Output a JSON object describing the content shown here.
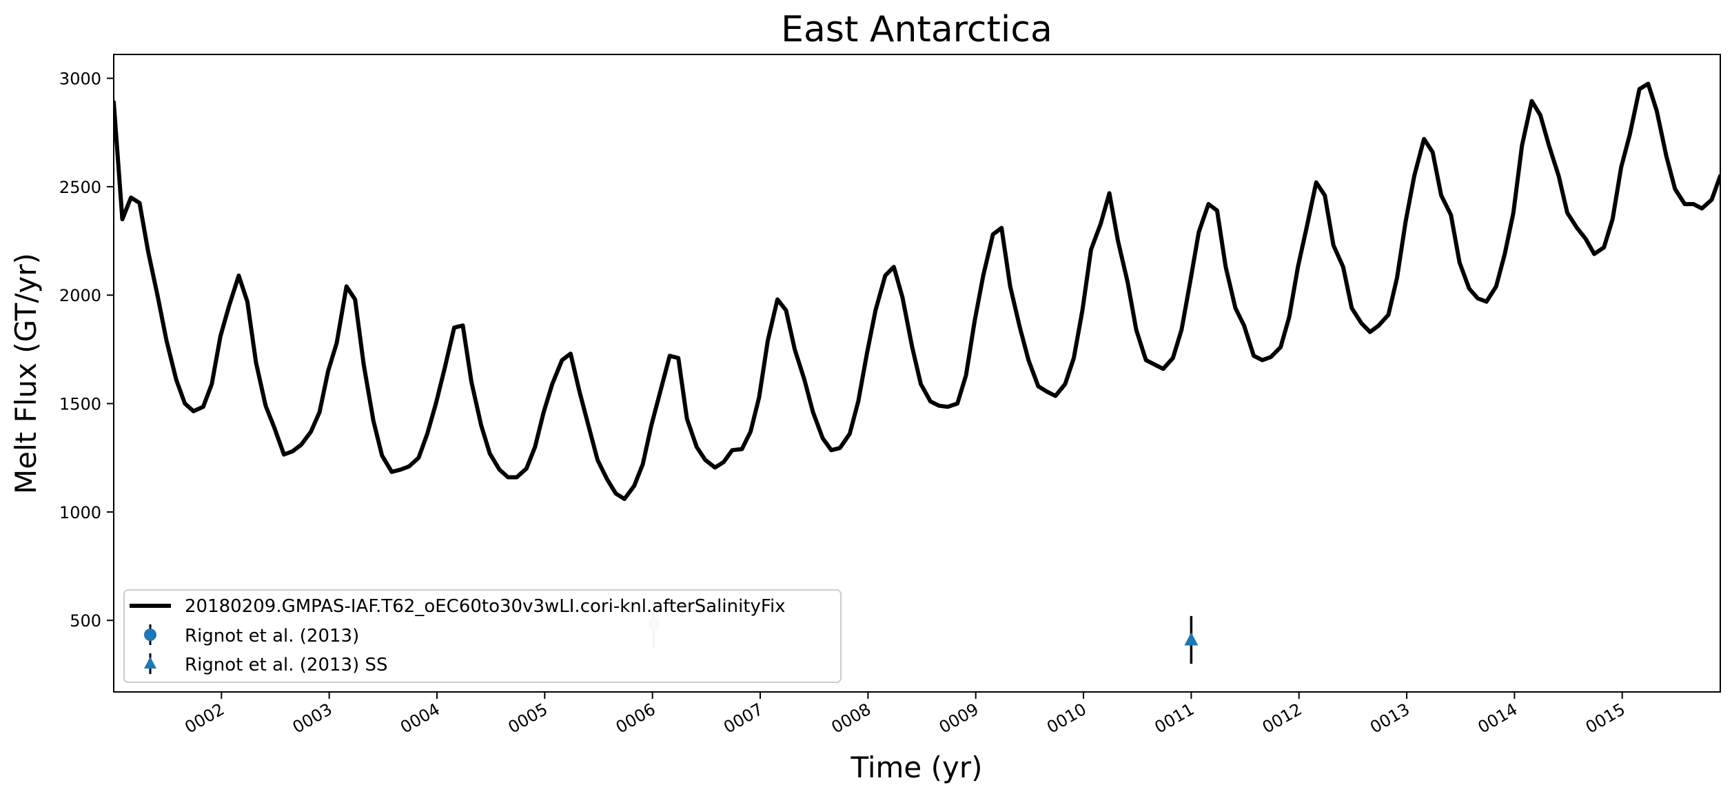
{
  "chart_data": {
    "type": "line",
    "title": "East Antarctica",
    "xlabel": "Time (yr)",
    "ylabel": "Melt Flux (GT/yr)",
    "xlim": [
      1.0,
      15.91
    ],
    "ylim": [
      170,
      3110
    ],
    "yticks": [
      500,
      1000,
      1500,
      2000,
      2500,
      3000
    ],
    "xticks": [
      {
        "value": 2,
        "label": "0002"
      },
      {
        "value": 3,
        "label": "0003"
      },
      {
        "value": 4,
        "label": "0004"
      },
      {
        "value": 5,
        "label": "0005"
      },
      {
        "value": 6,
        "label": "0006"
      },
      {
        "value": 7,
        "label": "0007"
      },
      {
        "value": 8,
        "label": "0008"
      },
      {
        "value": 9,
        "label": "0009"
      },
      {
        "value": 10,
        "label": "0010"
      },
      {
        "value": 11,
        "label": "0011"
      },
      {
        "value": 12,
        "label": "0012"
      },
      {
        "value": 13,
        "label": "0013"
      },
      {
        "value": 14,
        "label": "0014"
      },
      {
        "value": 15,
        "label": "0015"
      }
    ],
    "series": [
      {
        "name": "20180209.GMPAS-IAF.T62_oEC60to30v3wLI.cori-knl.afterSalinityFix",
        "color": "#000000",
        "x": [
          1.0,
          1.08,
          1.16,
          1.24,
          1.32,
          1.41,
          1.49,
          1.58,
          1.66,
          1.74,
          1.83,
          1.91,
          1.99,
          2.07,
          2.16,
          2.24,
          2.32,
          2.41,
          2.49,
          2.58,
          2.66,
          2.74,
          2.83,
          2.91,
          2.99,
          3.07,
          3.16,
          3.24,
          3.32,
          3.41,
          3.49,
          3.58,
          3.66,
          3.74,
          3.83,
          3.91,
          3.99,
          4.07,
          4.16,
          4.24,
          4.32,
          4.41,
          4.49,
          4.58,
          4.66,
          4.74,
          4.83,
          4.91,
          4.99,
          5.07,
          5.16,
          5.24,
          5.32,
          5.41,
          5.49,
          5.58,
          5.66,
          5.74,
          5.83,
          5.91,
          5.99,
          6.07,
          6.16,
          6.24,
          6.32,
          6.41,
          6.49,
          6.58,
          6.66,
          6.74,
          6.83,
          6.91,
          6.99,
          7.07,
          7.16,
          7.24,
          7.32,
          7.41,
          7.49,
          7.58,
          7.66,
          7.74,
          7.83,
          7.91,
          7.99,
          8.07,
          8.16,
          8.24,
          8.32,
          8.41,
          8.49,
          8.58,
          8.66,
          8.74,
          8.83,
          8.91,
          8.99,
          9.07,
          9.16,
          9.24,
          9.32,
          9.41,
          9.49,
          9.58,
          9.66,
          9.74,
          9.83,
          9.91,
          9.99,
          10.07,
          10.16,
          10.24,
          10.32,
          10.41,
          10.49,
          10.58,
          10.66,
          10.74,
          10.83,
          10.91,
          10.99,
          11.07,
          11.16,
          11.24,
          11.32,
          11.41,
          11.49,
          11.58,
          11.66,
          11.74,
          11.83,
          11.91,
          11.99,
          12.07,
          12.16,
          12.24,
          12.32,
          12.41,
          12.49,
          12.58,
          12.66,
          12.74,
          12.83,
          12.91,
          12.99,
          13.07,
          13.16,
          13.24,
          13.32,
          13.41,
          13.49,
          13.58,
          13.66,
          13.74,
          13.83,
          13.91,
          13.99,
          14.07,
          14.16,
          14.24,
          14.32,
          14.41,
          14.49,
          14.58,
          14.66,
          14.74,
          14.83,
          14.91,
          14.99,
          15.07,
          15.16,
          15.24,
          15.32,
          15.41,
          15.49,
          15.58,
          15.66,
          15.74,
          15.83,
          15.91
        ],
        "y": [
          2890,
          2350,
          2450,
          2425,
          2200,
          1990,
          1790,
          1610,
          1500,
          1465,
          1485,
          1590,
          1810,
          1950,
          2090,
          1970,
          1690,
          1490,
          1390,
          1265,
          1280,
          1310,
          1370,
          1460,
          1650,
          1780,
          2040,
          1980,
          1680,
          1420,
          1260,
          1185,
          1195,
          1210,
          1250,
          1360,
          1500,
          1660,
          1850,
          1860,
          1600,
          1400,
          1270,
          1195,
          1160,
          1160,
          1200,
          1300,
          1460,
          1590,
          1700,
          1730,
          1560,
          1390,
          1240,
          1150,
          1085,
          1060,
          1120,
          1220,
          1400,
          1550,
          1720,
          1710,
          1430,
          1300,
          1240,
          1205,
          1230,
          1285,
          1290,
          1370,
          1530,
          1790,
          1980,
          1930,
          1750,
          1610,
          1460,
          1340,
          1285,
          1295,
          1360,
          1510,
          1730,
          1930,
          2090,
          2130,
          1990,
          1760,
          1590,
          1510,
          1490,
          1485,
          1500,
          1630,
          1880,
          2090,
          2280,
          2310,
          2040,
          1850,
          1700,
          1580,
          1555,
          1535,
          1590,
          1710,
          1930,
          2210,
          2330,
          2470,
          2250,
          2060,
          1840,
          1700,
          1680,
          1660,
          1710,
          1840,
          2060,
          2290,
          2420,
          2390,
          2130,
          1940,
          1860,
          1720,
          1700,
          1715,
          1760,
          1900,
          2130,
          2310,
          2520,
          2460,
          2230,
          2130,
          1940,
          1870,
          1830,
          1860,
          1910,
          2080,
          2340,
          2550,
          2720,
          2660,
          2460,
          2370,
          2150,
          2030,
          1985,
          1970,
          2040,
          2190,
          2380,
          2690,
          2895,
          2830,
          2690,
          2550,
          2380,
          2310,
          2260,
          2190,
          2220,
          2350,
          2590,
          2740,
          2950,
          2975,
          2850,
          2640,
          2490,
          2420,
          2420,
          2400,
          2440,
          2550
        ]
      }
    ],
    "observations": [
      {
        "name": "Rignot et al. (2013)",
        "x": 6.01,
        "y": 483,
        "err": 107,
        "marker": "circle",
        "color": "#1f77b4",
        "plotted_alpha": 0.2
      },
      {
        "name": "Rignot et al. (2013) SS",
        "x": 11.0,
        "y": 410,
        "err": 110,
        "marker": "triangle",
        "color": "#1f77b4",
        "plotted_alpha": 1.0
      }
    ],
    "legend": {
      "position": "lower-left",
      "entries": [
        "20180209.GMPAS-IAF.T62_oEC60to30v3wLI.cori-knl.afterSalinityFix",
        "Rignot et al. (2013)",
        "Rignot et al. (2013) SS"
      ]
    },
    "grid": false
  }
}
